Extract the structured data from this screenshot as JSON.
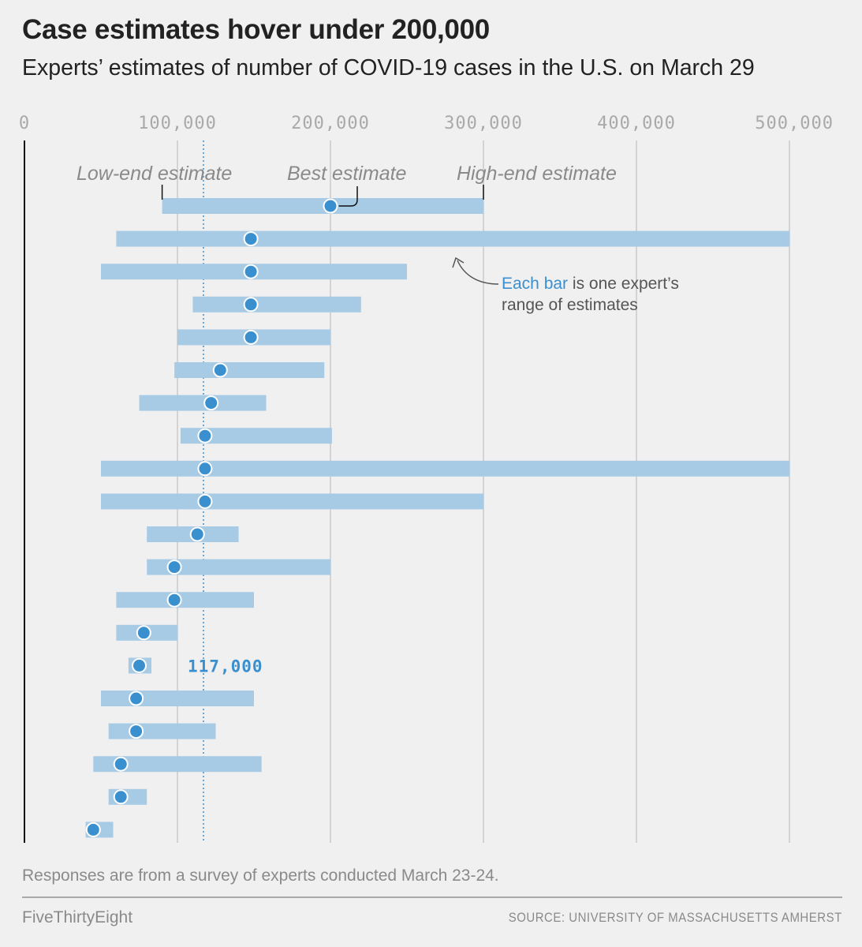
{
  "title": "Case estimates hover under 200,000",
  "subtitle": "Experts’ estimates of number of COVID-19 cases in the U.S. on March 29",
  "footnote": "Responses are from a survey of experts conducted March 23-24.",
  "brand": "FiveThirtyEight",
  "source": "SOURCE: UNIVERSITY OF MASSACHUSETTS AMHERST",
  "colors": {
    "bar": "#a8cbe5",
    "dot": "#3a8fcf",
    "accent": "#3a8fcf",
    "background": "#f0f0f0"
  },
  "chart_data": {
    "type": "range-dot",
    "title": "Case estimates hover under 200,000",
    "subtitle": "Experts’ estimates of number of COVID-19 cases in the U.S. on March 29",
    "xlabel": "",
    "ylabel": "",
    "xlim": [
      0,
      500000
    ],
    "grid": true,
    "x_ticks": [
      0,
      100000,
      200000,
      300000,
      400000,
      500000
    ],
    "x_tick_labels": [
      "0",
      "100,000",
      "200,000",
      "300,000",
      "400,000",
      "500,000"
    ],
    "median_value": 117000,
    "median_label": "117,000",
    "legend": {
      "low_label": "Low-end estimate",
      "best_label": "Best estimate",
      "high_label": "High-end estimate"
    },
    "annotation": {
      "accent_text": "Each bar",
      "rest_line1": " is one expert’s",
      "line2": "range of estimates"
    },
    "series": [
      {
        "name": "Low-end estimate",
        "values": [
          90000,
          60000,
          50000,
          110000,
          100000,
          98000,
          75000,
          102000,
          50000,
          50000,
          80000,
          80000,
          60000,
          60000,
          68000,
          50000,
          55000,
          45000,
          55000,
          40000
        ]
      },
      {
        "name": "Best estimate",
        "values": [
          200000,
          148000,
          148000,
          148000,
          148000,
          128000,
          122000,
          118000,
          118000,
          118000,
          113000,
          98000,
          98000,
          78000,
          75000,
          73000,
          73000,
          63000,
          63000,
          45000
        ]
      },
      {
        "name": "High-end estimate",
        "values": [
          300000,
          500000,
          250000,
          220000,
          200000,
          196000,
          158000,
          201000,
          500000,
          300000,
          140000,
          200000,
          150000,
          100000,
          83000,
          150000,
          125000,
          155000,
          80000,
          58000
        ]
      }
    ]
  }
}
